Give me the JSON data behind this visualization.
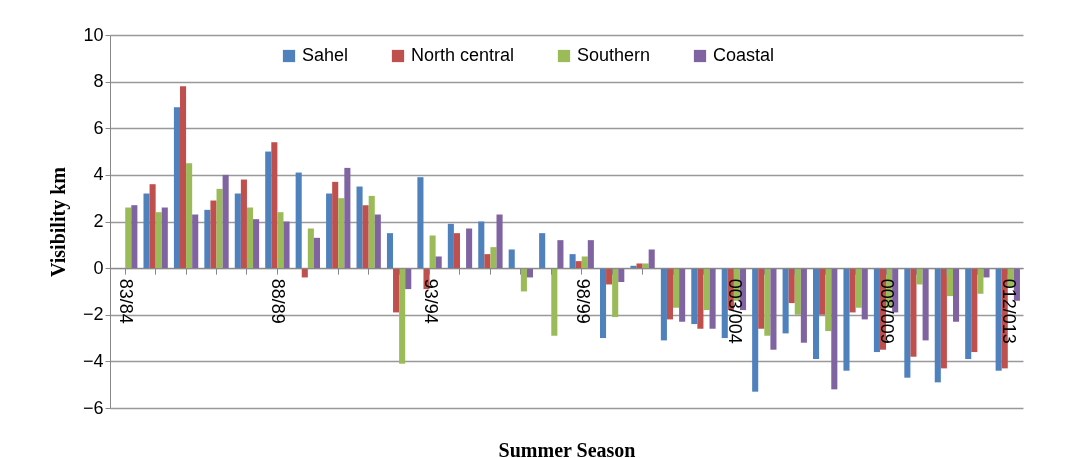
{
  "chart_data": {
    "type": "bar",
    "xlabel": "Summer Season",
    "ylabel": "Visibility km",
    "categories": [
      "83/84",
      null,
      null,
      null,
      null,
      "88/89",
      null,
      null,
      null,
      null,
      "93/94",
      null,
      null,
      null,
      null,
      "98/99",
      null,
      null,
      null,
      null,
      "003/004",
      null,
      null,
      null,
      null,
      "008/009",
      null,
      null,
      null,
      "012/013"
    ],
    "series": [
      {
        "name": "Sahel",
        "color": "#4f81bd",
        "values": [
          null,
          3.2,
          6.9,
          2.5,
          3.2,
          5.0,
          4.1,
          3.2,
          3.5,
          1.5,
          3.9,
          1.9,
          2.0,
          0.8,
          1.5,
          0.6,
          -3.0,
          0.1,
          -3.1,
          -2.4,
          -3.0,
          -5.3,
          -2.8,
          -3.9,
          -4.4,
          -3.6,
          -4.7,
          -4.9,
          -3.9,
          -4.4
        ]
      },
      {
        "name": "North central",
        "color": "#c0504d",
        "values": [
          null,
          3.6,
          7.8,
          2.9,
          3.8,
          5.4,
          -0.4,
          3.7,
          2.7,
          -1.9,
          -0.9,
          1.5,
          0.6,
          null,
          null,
          0.3,
          -0.7,
          0.2,
          -2.2,
          -2.6,
          -1.8,
          -2.6,
          -1.5,
          -2.0,
          -1.9,
          -3.5,
          -3.8,
          -4.3,
          -3.6,
          -4.3
        ]
      },
      {
        "name": "Southern",
        "color": "#9bbb59",
        "values": [
          2.6,
          2.4,
          4.5,
          3.4,
          2.6,
          2.4,
          1.7,
          3.0,
          3.1,
          -4.1,
          1.4,
          null,
          0.9,
          -1.0,
          -2.9,
          0.5,
          -2.1,
          0.2,
          -1.7,
          -1.8,
          -1.4,
          -2.9,
          -2.0,
          -2.7,
          -1.7,
          -1.7,
          -0.7,
          -1.2,
          -1.1,
          -0.8
        ]
      },
      {
        "name": "Coastal",
        "color": "#8064a2",
        "values": [
          2.7,
          2.6,
          2.3,
          4.0,
          2.1,
          2.0,
          1.3,
          4.3,
          2.3,
          -0.9,
          0.5,
          1.7,
          2.3,
          -0.4,
          1.2,
          1.2,
          -0.6,
          0.8,
          -2.3,
          -2.6,
          -1.8,
          -3.5,
          -3.2,
          -5.2,
          -2.2,
          -1.9,
          -3.1,
          -2.3,
          -0.4,
          -1.4
        ]
      }
    ],
    "ylim": [
      -6,
      10
    ],
    "yticks": [
      -6,
      -4,
      -2,
      0,
      2,
      4,
      6,
      8,
      10
    ],
    "grid": "y",
    "legend": "top"
  }
}
